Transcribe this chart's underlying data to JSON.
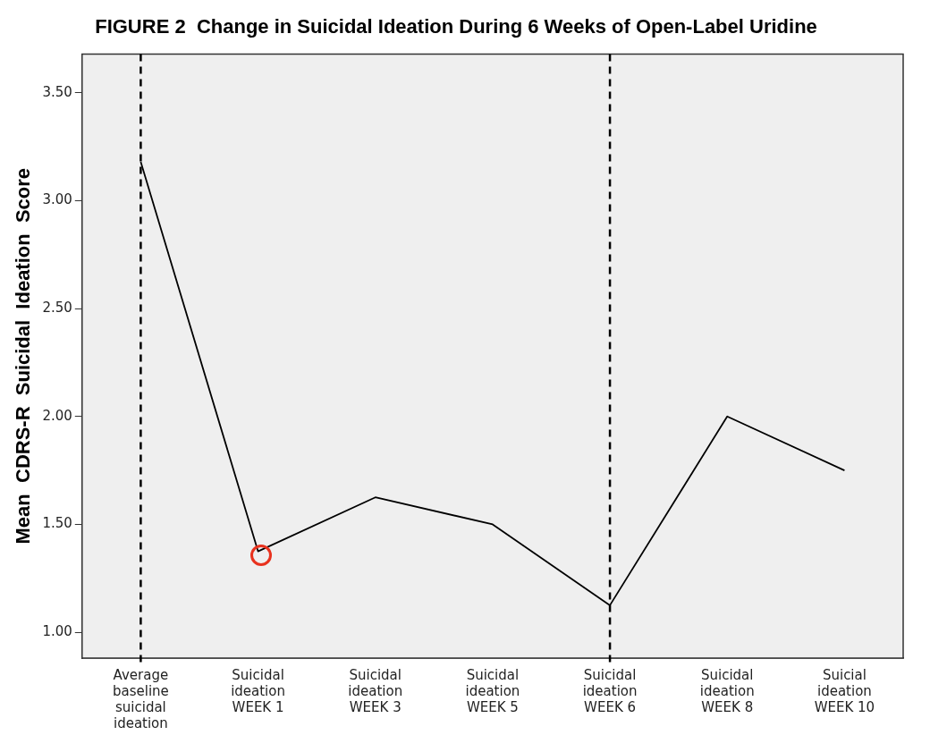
{
  "chart_data": {
    "type": "line",
    "title": "FIGURE 2  Change in Suicidal Ideation During 6 Weeks of Open-Label Uridine",
    "ylabel": "Mean  CDRS-R  Suicidal  Ideation  Score",
    "categories": [
      "Average baseline suicidal ideation",
      "Suicidal ideation WEEK 1",
      "Suicidal ideation WEEK 3",
      "Suicidal ideation WEEK 5",
      "Suicidal ideation WEEK 6",
      "Suicidal ideation WEEK 8",
      "Suicial ideation WEEK 10"
    ],
    "series": [
      {
        "color": "#000000",
        "values": [
          3.18,
          1.375,
          1.625,
          1.5,
          1.125,
          2.0,
          1.75
        ]
      }
    ],
    "ylim": [
      0.88,
      3.68
    ],
    "yticks": [
      {
        "value": 1,
        "label": "1.00"
      },
      {
        "value": 1.5,
        "label": "1.50"
      },
      {
        "value": 2,
        "label": "2.00"
      },
      {
        "value": 2.5,
        "label": "2.50"
      },
      {
        "value": 3,
        "label": "3.00"
      },
      {
        "value": 3.5,
        "label": "3.50"
      }
    ],
    "ref_lines": [
      {
        "axis": "x",
        "value": "Average baseline suicidal ideation",
        "color": "#000000",
        "line_style": "dashed"
      },
      {
        "axis": "x",
        "value": "Suicidal ideation WEEK 6",
        "color": "#000000",
        "line_style": "dashed"
      }
    ],
    "grid": false,
    "legend": false,
    "marker": "none",
    "line_style": "solid"
  }
}
